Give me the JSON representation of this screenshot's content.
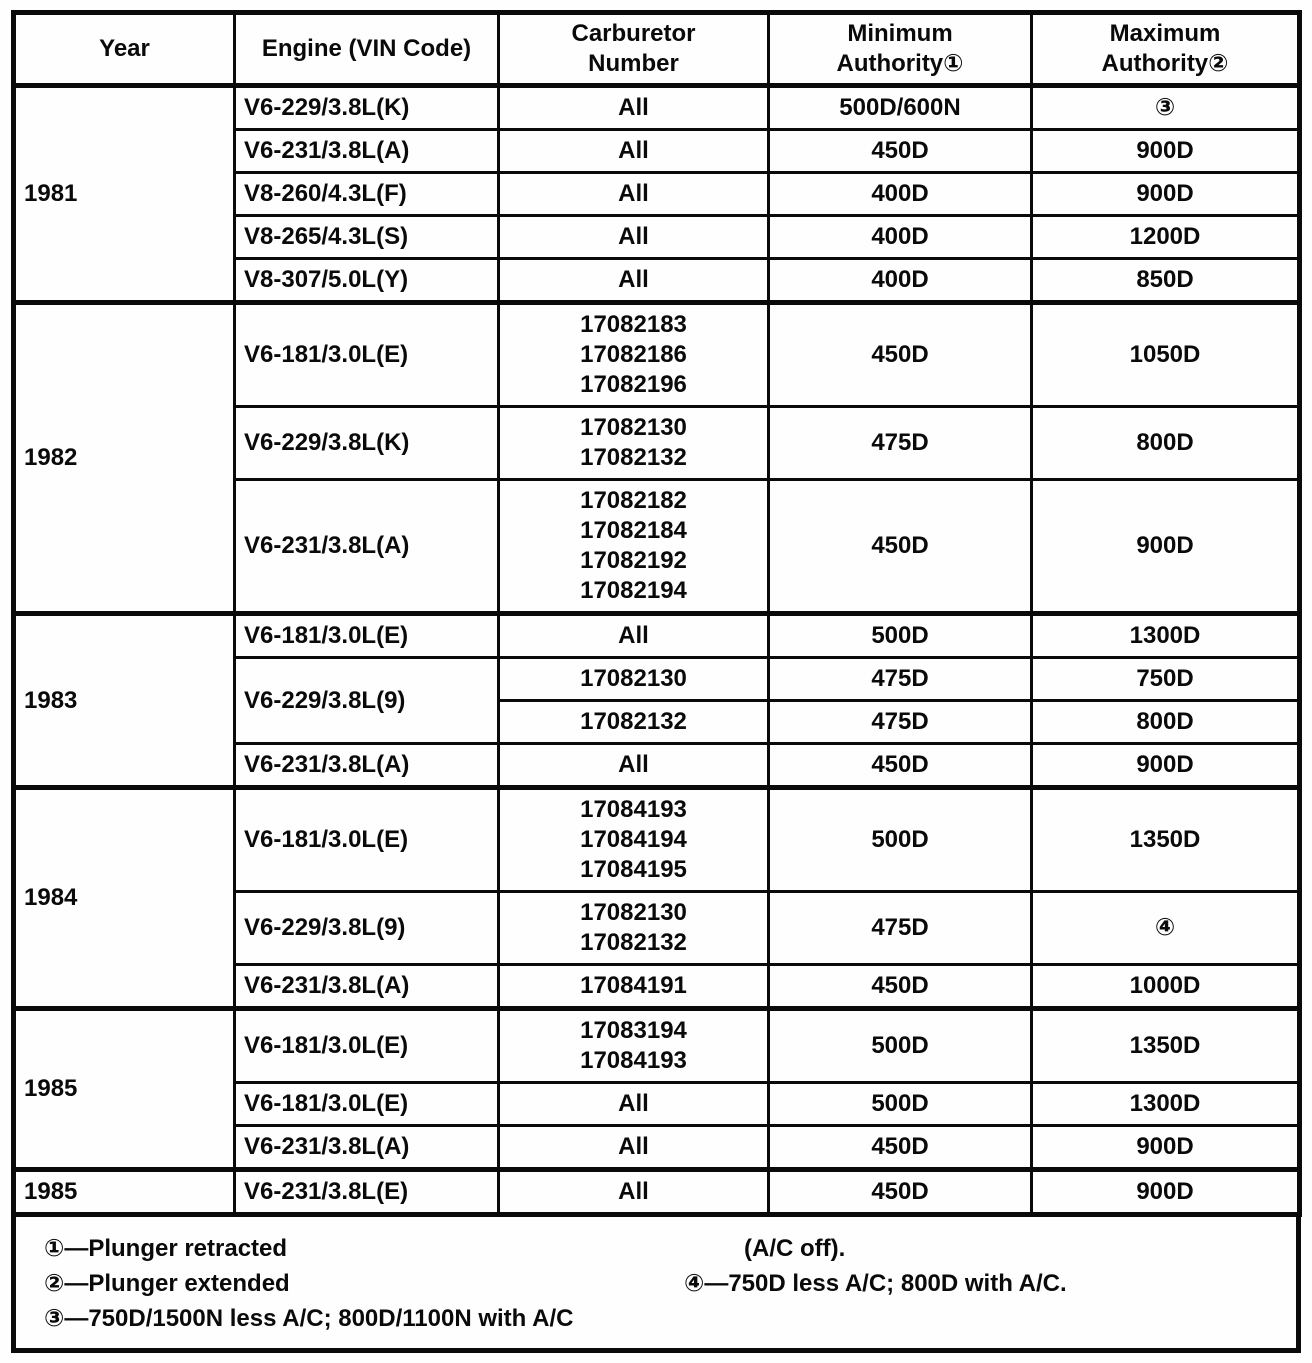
{
  "table": {
    "headers": [
      "Year",
      "Engine (VIN Code)",
      "Carburetor\nNumber",
      "Minimum\nAuthority①",
      "Maximum\nAuthority②"
    ],
    "rows": [
      {
        "year": "1981",
        "engine": "V6-229/3.8L(K)",
        "carb": "All",
        "min": "500D/600N",
        "max": "③"
      },
      {
        "engine": "V6-231/3.8L(A)",
        "carb": "All",
        "min": "450D",
        "max": "900D"
      },
      {
        "engine": "V8-260/4.3L(F)",
        "carb": "All",
        "min": "400D",
        "max": "900D"
      },
      {
        "engine": "V8-265/4.3L(S)",
        "carb": "All",
        "min": "400D",
        "max": "1200D"
      },
      {
        "engine": "V8-307/5.0L(Y)",
        "carb": "All",
        "min": "400D",
        "max": "850D"
      },
      {
        "year": "1982",
        "engine": "V6-181/3.0L(E)",
        "carb": "17082183\n17082186\n17082196",
        "min": "450D",
        "max": "1050D"
      },
      {
        "engine": "V6-229/3.8L(K)",
        "carb": "17082130\n17082132",
        "min": "475D",
        "max": "800D"
      },
      {
        "engine": "V6-231/3.8L(A)",
        "carb": "17082182\n17082184\n17082192\n17082194",
        "min": "450D",
        "max": "900D"
      },
      {
        "year": "1983",
        "engine": "V6-181/3.0L(E)",
        "carb": "All",
        "min": "500D",
        "max": "1300D"
      },
      {
        "engine": "V6-229/3.8L(9)",
        "carb": "17082130",
        "min": "475D",
        "max": "750D"
      },
      {
        "carb": "17082132",
        "min": "475D",
        "max": "800D"
      },
      {
        "engine": "V6-231/3.8L(A)",
        "carb": "All",
        "min": "450D",
        "max": "900D"
      },
      {
        "year": "1984",
        "engine": "V6-181/3.0L(E)",
        "carb": "17084193\n17084194\n17084195",
        "min": "500D",
        "max": "1350D"
      },
      {
        "engine": "V6-229/3.8L(9)",
        "carb": "17082130\n17082132",
        "min": "475D",
        "max": "④"
      },
      {
        "engine": "V6-231/3.8L(A)",
        "carb": "17084191",
        "min": "450D",
        "max": "1000D"
      },
      {
        "year": "1985",
        "engine": "V6-181/3.0L(E)",
        "carb": "17083194\n17084193",
        "min": "500D",
        "max": "1350D"
      },
      {
        "engine": "V6-181/3.0L(E)",
        "carb": "All",
        "min": "500D",
        "max": "1300D"
      },
      {
        "engine": "V6-231/3.8L(A)",
        "carb": "All",
        "min": "450D",
        "max": "900D"
      },
      {
        "year": "1985",
        "engine": "V6-231/3.8L(E)",
        "carb": "All",
        "min": "450D",
        "max": "900D"
      }
    ]
  },
  "footnotes": {
    "line1_left": "①—Plunger retracted",
    "line1_right": "(A/C off).",
    "line2_left": "②—Plunger extended",
    "line2_right": "④—750D less A/C; 800D with A/C.",
    "line3_left": "③—750D/1500N less A/C; 800D/1100N with A/C"
  }
}
